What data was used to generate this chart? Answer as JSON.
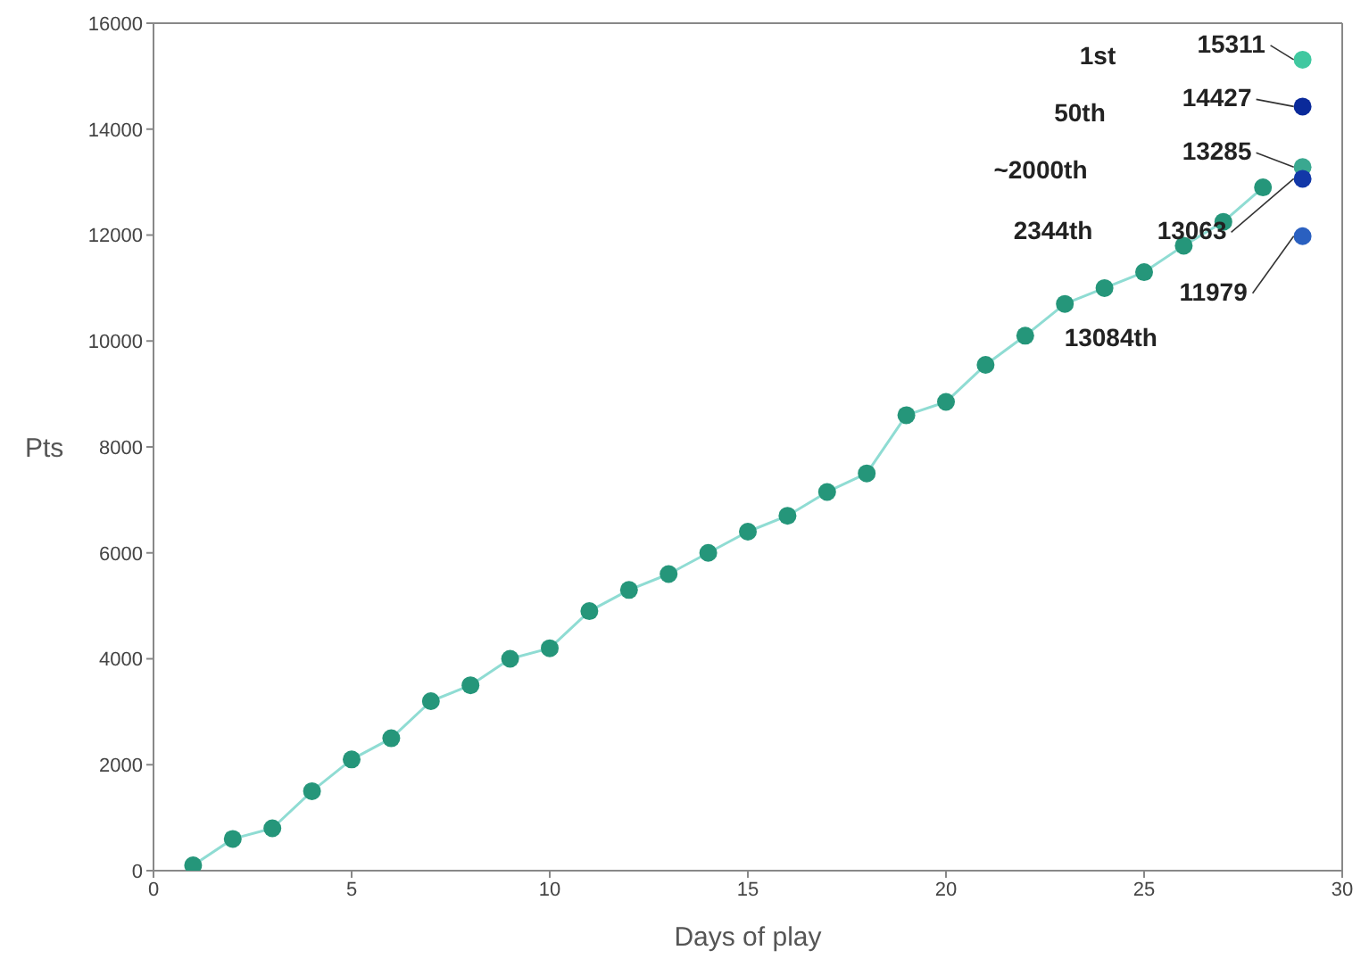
{
  "chart_data": {
    "type": "line",
    "xlabel": "Days of play",
    "ylabel": "Pts",
    "xlim": [
      0,
      30
    ],
    "xticks": [
      0,
      5,
      10,
      15,
      20,
      25,
      30
    ],
    "ylim": [
      0,
      16000
    ],
    "yticks": [
      0,
      2000,
      4000,
      6000,
      8000,
      10000,
      12000,
      14000,
      16000
    ],
    "marker": "circle",
    "grid": false,
    "series": [
      {
        "color": "#25967a",
        "x": [
          1,
          2,
          3,
          4,
          5,
          6,
          7,
          8,
          9,
          10,
          11,
          12,
          13,
          14,
          15,
          16,
          17,
          18,
          19,
          20,
          21,
          22,
          23,
          24,
          25,
          26,
          27,
          28
        ],
        "values": [
          100,
          600,
          800,
          1500,
          2100,
          2500,
          3200,
          3500,
          4000,
          4200,
          4900,
          5300,
          5600,
          6000,
          6400,
          6700,
          7150,
          7500,
          8600,
          8850,
          9550,
          10100,
          10700,
          11000,
          11300,
          11800,
          12250,
          12900
        ]
      },
      {
        "type": "scatter",
        "color": "#40c8a0",
        "x": [
          29
        ],
        "values": [
          15311
        ],
        "value_labels": [
          "15311"
        ]
      },
      {
        "type": "scatter",
        "color": "#0a2a9a",
        "x": [
          29
        ],
        "values": [
          14427
        ],
        "value_labels": [
          "14427"
        ]
      },
      {
        "type": "scatter",
        "color": "#3aa890",
        "x": [
          29
        ],
        "values": [
          13285
        ],
        "value_labels": [
          "13285"
        ]
      },
      {
        "type": "scatter",
        "color": "#1238a8",
        "x": [
          29
        ],
        "values": [
          13063
        ],
        "value_labels": [
          "13063"
        ]
      },
      {
        "type": "scatter",
        "color": "#2a60c0",
        "x": [
          29
        ],
        "values": [
          11979
        ],
        "value_labels": [
          "11979"
        ]
      }
    ],
    "annotations": [
      "1st",
      "50th",
      "~2000th",
      "2344th",
      {
        "text": "13084th",
        "x": 22,
        "y": 10100
      }
    ]
  }
}
